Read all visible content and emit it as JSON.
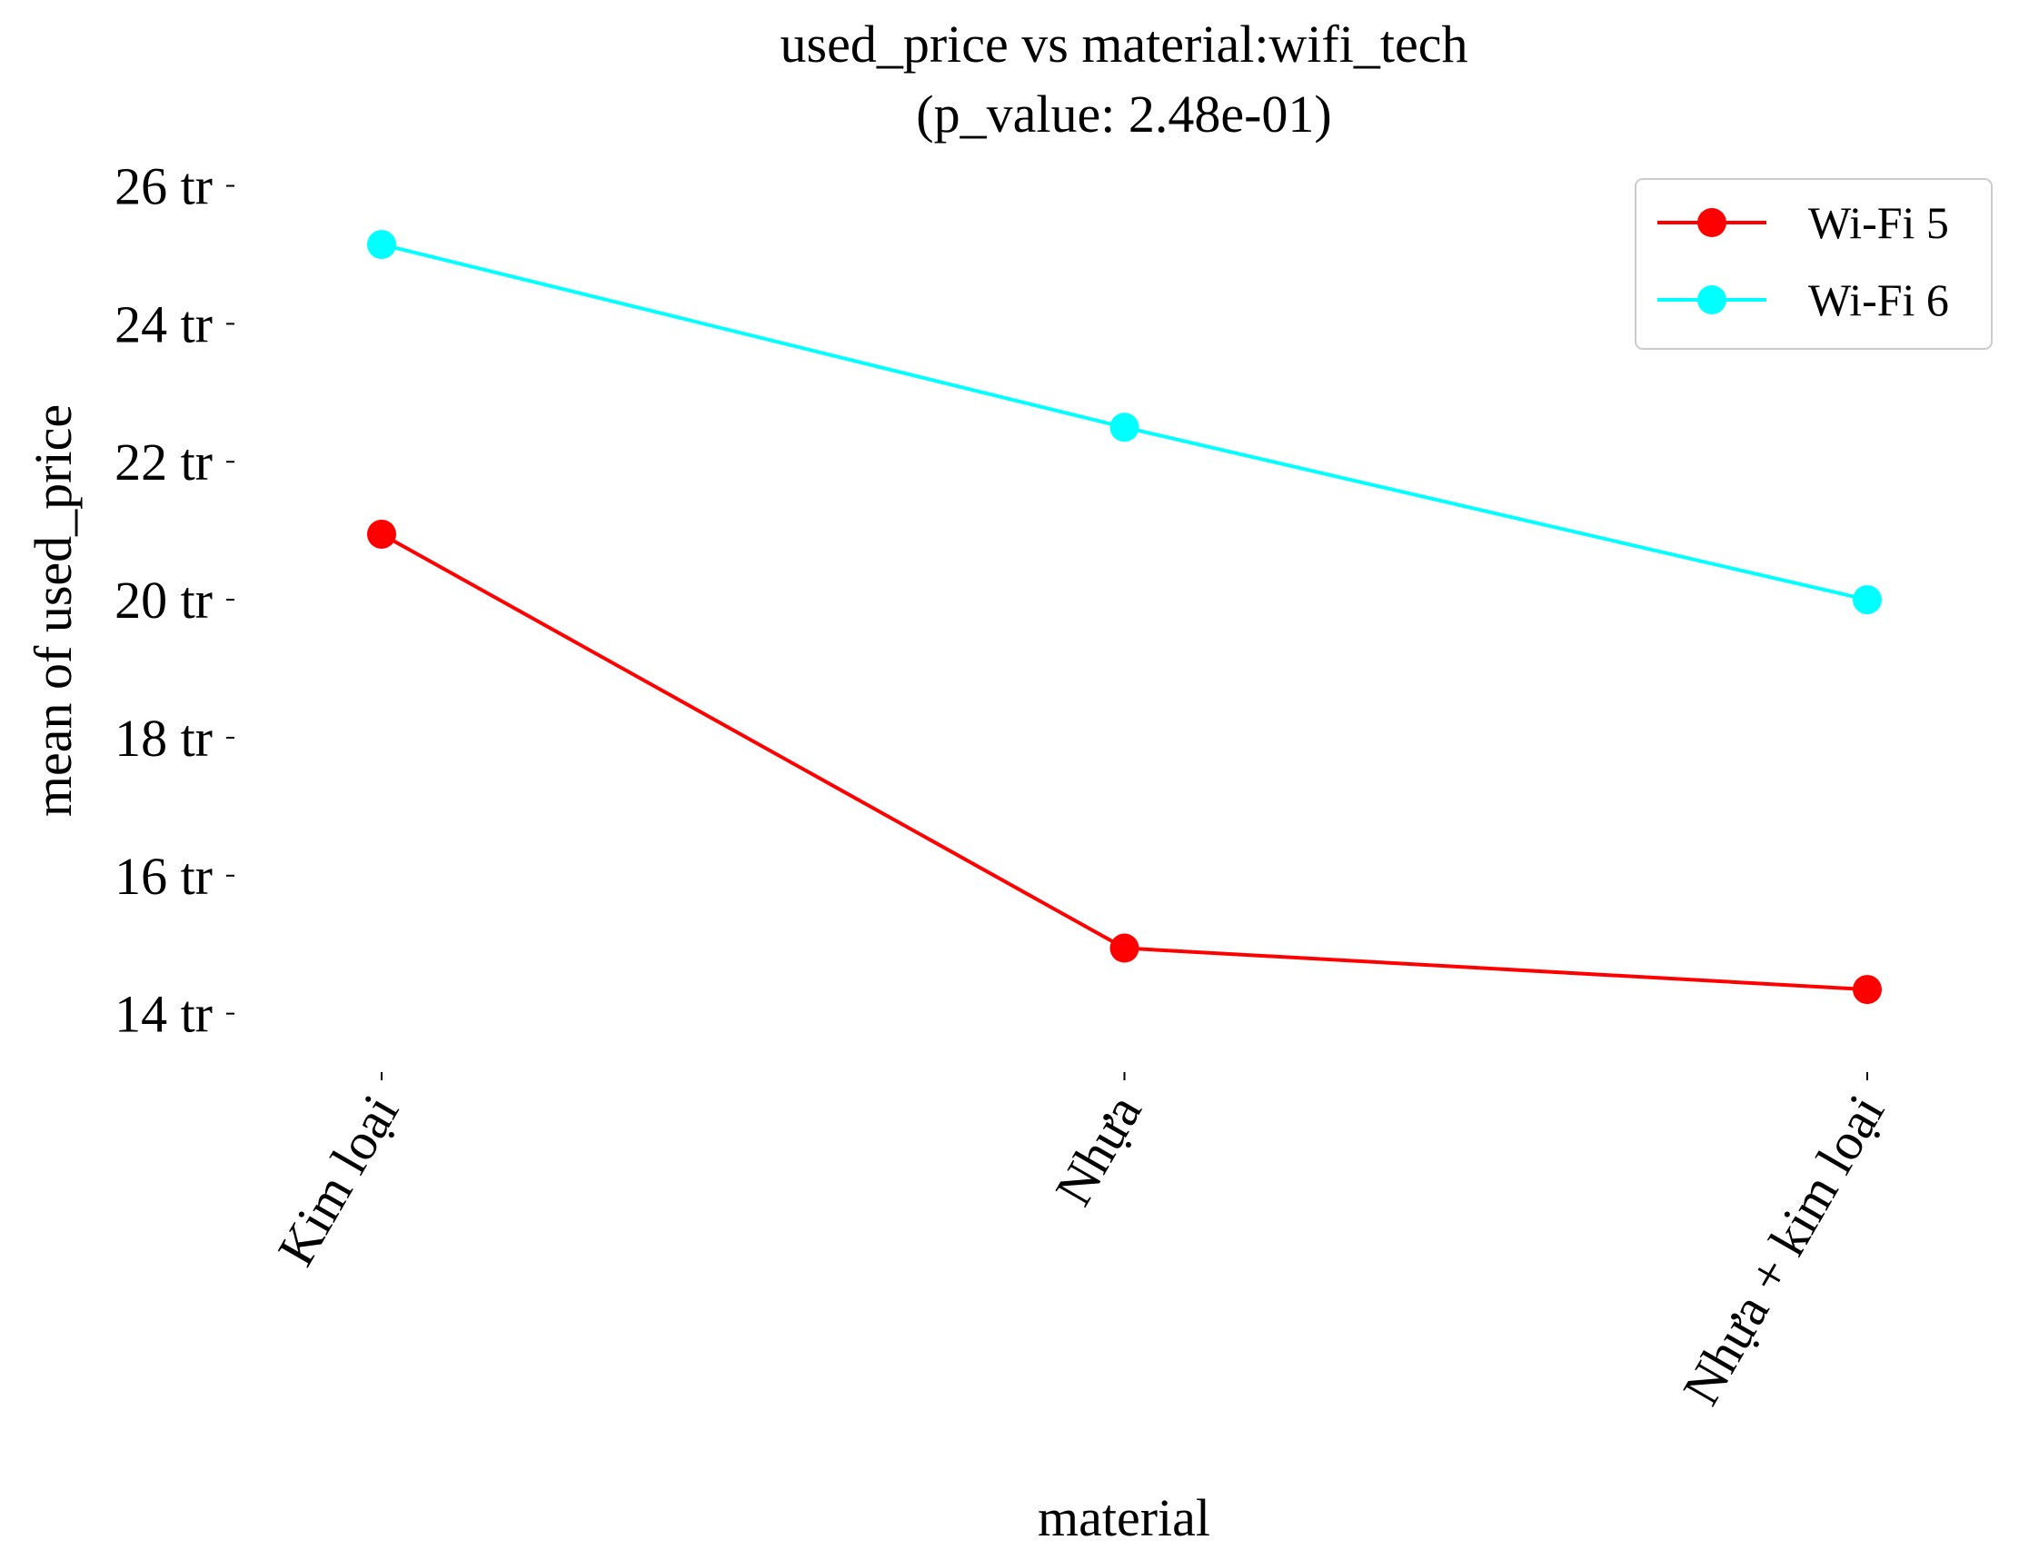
{
  "chart_data": {
    "type": "line",
    "title_line1": "used_price vs material:wifi_tech",
    "title_line2": "(p_value: 2.48e-01)",
    "xlabel": "material",
    "ylabel": "mean of used_price",
    "categories": [
      "Kim loại",
      "Nhựa",
      "Nhựa + kim loại"
    ],
    "y_ticks": [
      {
        "value": 14000000,
        "label": "14 tr"
      },
      {
        "value": 16000000,
        "label": "16 tr"
      },
      {
        "value": 18000000,
        "label": "18 tr"
      },
      {
        "value": 20000000,
        "label": "20 tr"
      },
      {
        "value": 22000000,
        "label": "22 tr"
      },
      {
        "value": 24000000,
        "label": "24 tr"
      },
      {
        "value": 26000000,
        "label": "26 tr"
      }
    ],
    "ylim": [
      13350000,
      26850000
    ],
    "grid": false,
    "legend_position": "top-right",
    "series": [
      {
        "name": "Wi-Fi 5",
        "color": "#ff0000",
        "values": [
          20950000,
          14950000,
          14350000
        ]
      },
      {
        "name": "Wi-Fi 6",
        "color": "#00ffff",
        "values": [
          25150000,
          22500000,
          20000000
        ]
      }
    ]
  }
}
